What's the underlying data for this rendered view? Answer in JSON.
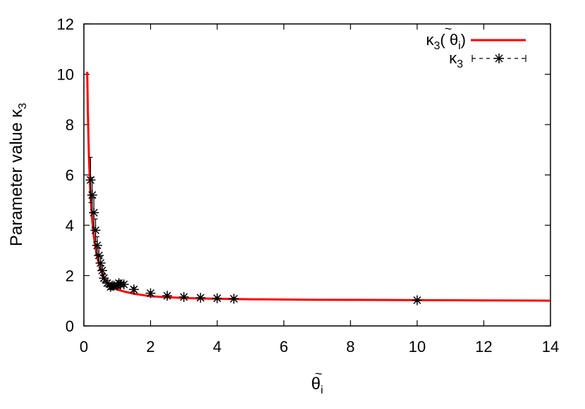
{
  "chart_data": {
    "type": "line",
    "title": "",
    "xlabel": "θ̃i",
    "ylabel": "Parameter value κ3",
    "xlim": [
      0,
      14
    ],
    "ylim": [
      0,
      12
    ],
    "x_ticks": [
      "0",
      "2",
      "4",
      "6",
      "8",
      "10",
      "12",
      "14"
    ],
    "y_ticks": [
      "0",
      "2",
      "4",
      "6",
      "8",
      "10",
      "12"
    ],
    "grid": false,
    "legend_position": "top-right",
    "series": [
      {
        "name": "κ3( θ̃i)",
        "style": "solid",
        "color": "#ff0000",
        "x": [
          0.1,
          0.12,
          0.15,
          0.18,
          0.2,
          0.25,
          0.3,
          0.35,
          0.4,
          0.5,
          0.6,
          0.7,
          0.8,
          0.9,
          1.0,
          1.2,
          1.5,
          2.0,
          2.5,
          3.0,
          3.5,
          4.0,
          5.0,
          6.0,
          7.0,
          8.0,
          9.0,
          10.0,
          11.0,
          12.0,
          13.0,
          14.0
        ],
        "y": [
          10.1,
          8.5,
          6.8,
          5.75,
          5.2,
          4.2,
          3.55,
          3.1,
          2.75,
          2.25,
          1.93,
          1.72,
          1.6,
          1.5,
          1.45,
          1.37,
          1.28,
          1.18,
          1.14,
          1.11,
          1.09,
          1.08,
          1.06,
          1.05,
          1.04,
          1.035,
          1.03,
          1.025,
          1.02,
          1.015,
          1.01,
          1.005
        ]
      },
      {
        "name": "κ3",
        "style": "dashed-star-errorbars",
        "color": "#000000",
        "x": [
          0.2,
          0.25,
          0.3,
          0.35,
          0.4,
          0.45,
          0.5,
          0.55,
          0.6,
          0.7,
          0.8,
          0.85,
          0.9,
          1.0,
          1.05,
          1.1,
          1.2,
          1.5,
          2.0,
          2.5,
          3.0,
          3.5,
          4.0,
          4.5,
          10.0
        ],
        "y": [
          5.8,
          5.2,
          4.5,
          3.8,
          3.2,
          2.8,
          2.5,
          2.2,
          1.9,
          1.7,
          1.55,
          1.6,
          1.6,
          1.6,
          1.7,
          1.65,
          1.65,
          1.45,
          1.3,
          1.2,
          1.15,
          1.12,
          1.1,
          1.08,
          1.02
        ],
        "err": [
          0.9,
          0.7,
          0.6,
          0.45,
          0.35,
          0.3,
          0.25,
          0.2,
          0.15,
          0.12,
          0.1,
          0.1,
          0.1,
          0.1,
          0.1,
          0.1,
          0.08,
          0.08,
          0.06,
          0.05,
          0.05,
          0.05,
          0.05,
          0.05,
          0.05
        ]
      }
    ]
  },
  "legend": {
    "entry1": {
      "base": "κ",
      "sub": "3",
      "open": "( ",
      "theta": "θ",
      "tilde": "~",
      "theta_sub": "i",
      "close": ")"
    },
    "entry2": {
      "base": "κ",
      "sub": "3"
    }
  },
  "axis_titles": {
    "x": {
      "base": "θ",
      "tilde": "~",
      "sub": "i"
    },
    "y": {
      "text": "Parameter value κ",
      "sub": "3"
    }
  }
}
